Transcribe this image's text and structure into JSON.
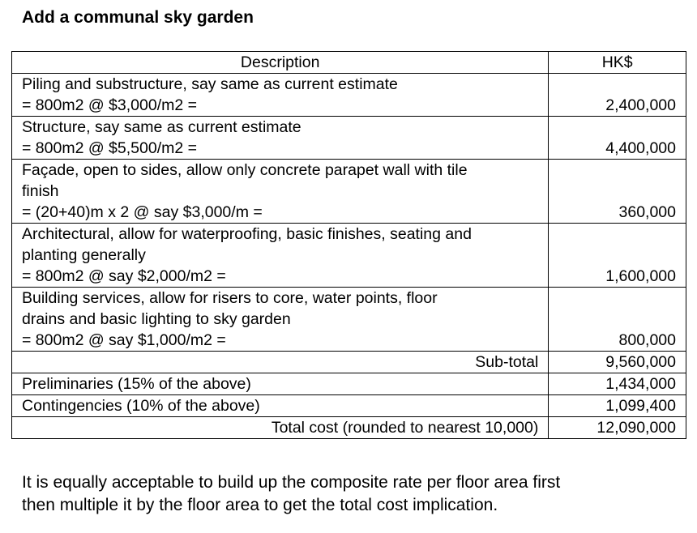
{
  "title": "Add a communal sky garden",
  "table": {
    "header": {
      "description": "Description",
      "amount": "HK$"
    },
    "rows": [
      {
        "lines": [
          "Piling and substructure, say same as current estimate",
          "= 800m2 @ $3,000/m2 ="
        ],
        "amount": "2,400,000"
      },
      {
        "lines": [
          "Structure, say same as current estimate",
          "= 800m2 @ $5,500/m2 ="
        ],
        "amount": "4,400,000"
      },
      {
        "lines": [
          "Façade, open to sides, allow only concrete parapet wall with tile",
          "finish",
          "= (20+40)m x 2 @ say $3,000/m ="
        ],
        "amount": "360,000"
      },
      {
        "lines": [
          "Architectural, allow for waterproofing, basic finishes, seating and",
          "planting generally",
          "= 800m2 @ say $2,000/m2 ="
        ],
        "amount": "1,600,000"
      },
      {
        "lines": [
          "Building services, allow for risers to core, water points, floor",
          "drains and basic lighting to sky garden",
          "= 800m2 @ say $1,000/m2 ="
        ],
        "amount": "800,000"
      }
    ],
    "subtotal": {
      "label": "Sub-total",
      "amount": "9,560,000"
    },
    "preliminaries": {
      "label": "Preliminaries (15% of the above)",
      "amount": "1,434,000"
    },
    "contingencies": {
      "label": "Contingencies (10% of the above)",
      "amount": "1,099,400"
    },
    "total": {
      "label": "Total cost (rounded to nearest 10,000)",
      "amount": "12,090,000"
    }
  },
  "note": {
    "line1": "It is equally acceptable to build up the composite rate per floor area first",
    "line2": "then multiple it by the floor area to get the total cost implication."
  }
}
